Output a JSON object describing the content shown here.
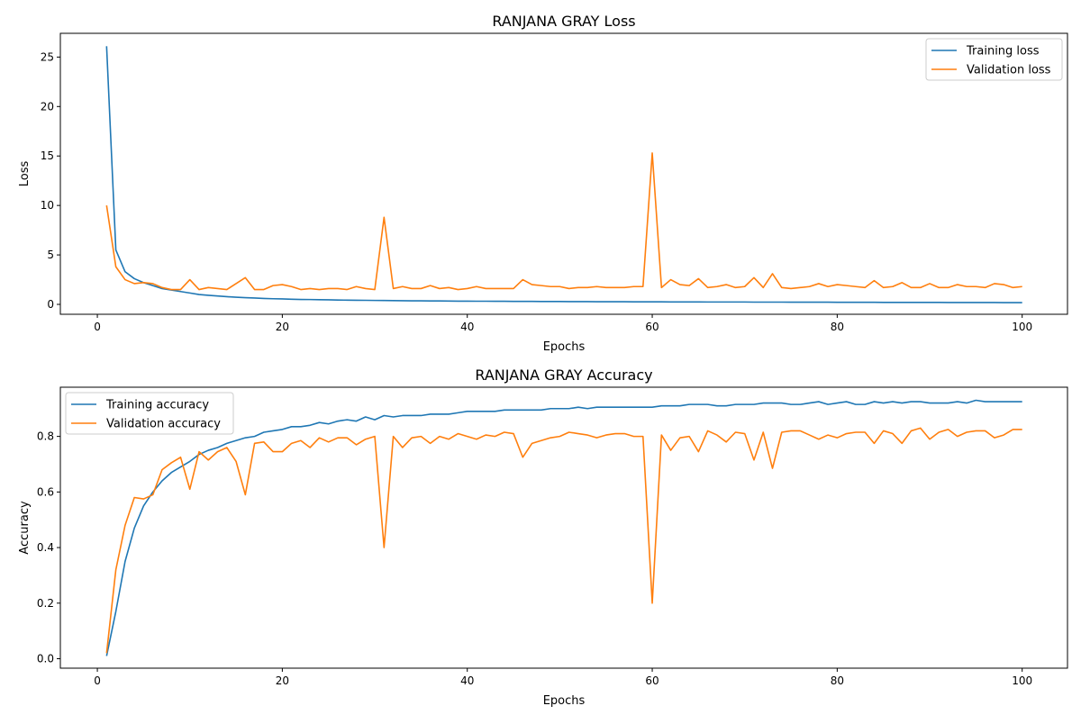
{
  "chart_data": [
    {
      "type": "line",
      "title": "RANJANA GRAY Loss",
      "xlabel": "Epochs",
      "ylabel": "Loss",
      "xlim": [
        -4,
        104.9
      ],
      "ylim": [
        -1.0,
        27.4
      ],
      "xticks": [
        0,
        20,
        40,
        60,
        80,
        100
      ],
      "yticks": [
        0,
        5,
        10,
        15,
        20,
        25
      ],
      "grid": false,
      "legend_position": "top-right",
      "x": [
        1,
        2,
        3,
        4,
        5,
        6,
        7,
        8,
        9,
        10,
        11,
        12,
        13,
        14,
        15,
        16,
        17,
        18,
        19,
        20,
        21,
        22,
        23,
        24,
        25,
        26,
        27,
        28,
        29,
        30,
        31,
        32,
        33,
        34,
        35,
        36,
        37,
        38,
        39,
        40,
        41,
        42,
        43,
        44,
        45,
        46,
        47,
        48,
        49,
        50,
        51,
        52,
        53,
        54,
        55,
        56,
        57,
        58,
        59,
        60,
        61,
        62,
        63,
        64,
        65,
        66,
        67,
        68,
        69,
        70,
        71,
        72,
        73,
        74,
        75,
        76,
        77,
        78,
        79,
        80,
        81,
        82,
        83,
        84,
        85,
        86,
        87,
        88,
        89,
        90,
        91,
        92,
        93,
        94,
        95,
        96,
        97,
        98,
        99,
        100
      ],
      "series": [
        {
          "name": "Training loss",
          "color": "#1f77b4",
          "values": [
            26.1,
            5.5,
            3.3,
            2.6,
            2.2,
            1.9,
            1.6,
            1.45,
            1.3,
            1.15,
            1.0,
            0.92,
            0.85,
            0.78,
            0.72,
            0.68,
            0.64,
            0.6,
            0.57,
            0.55,
            0.52,
            0.5,
            0.49,
            0.47,
            0.46,
            0.44,
            0.43,
            0.42,
            0.41,
            0.4,
            0.39,
            0.38,
            0.37,
            0.36,
            0.36,
            0.35,
            0.35,
            0.34,
            0.33,
            0.33,
            0.32,
            0.32,
            0.31,
            0.31,
            0.3,
            0.3,
            0.3,
            0.29,
            0.29,
            0.29,
            0.28,
            0.28,
            0.28,
            0.27,
            0.27,
            0.27,
            0.27,
            0.26,
            0.26,
            0.26,
            0.26,
            0.25,
            0.25,
            0.25,
            0.25,
            0.24,
            0.24,
            0.24,
            0.24,
            0.24,
            0.23,
            0.23,
            0.23,
            0.23,
            0.22,
            0.22,
            0.22,
            0.22,
            0.22,
            0.21,
            0.21,
            0.21,
            0.21,
            0.21,
            0.2,
            0.2,
            0.2,
            0.2,
            0.2,
            0.2,
            0.2,
            0.19,
            0.19,
            0.19,
            0.19,
            0.19,
            0.19,
            0.18,
            0.18,
            0.18
          ]
        },
        {
          "name": "Validation loss",
          "color": "#ff7f0e",
          "values": [
            10.0,
            3.8,
            2.5,
            2.1,
            2.2,
            2.1,
            1.7,
            1.5,
            1.5,
            2.5,
            1.5,
            1.7,
            1.6,
            1.5,
            2.1,
            2.7,
            1.5,
            1.5,
            1.9,
            2.0,
            1.8,
            1.5,
            1.6,
            1.5,
            1.6,
            1.6,
            1.5,
            1.8,
            1.6,
            1.5,
            8.8,
            1.6,
            1.8,
            1.6,
            1.6,
            1.9,
            1.6,
            1.7,
            1.5,
            1.6,
            1.8,
            1.6,
            1.6,
            1.6,
            1.6,
            2.5,
            2.0,
            1.9,
            1.8,
            1.8,
            1.6,
            1.7,
            1.7,
            1.8,
            1.7,
            1.7,
            1.7,
            1.8,
            1.8,
            15.3,
            1.7,
            2.5,
            2.0,
            1.9,
            2.6,
            1.7,
            1.8,
            2.0,
            1.7,
            1.8,
            2.7,
            1.7,
            3.1,
            1.7,
            1.6,
            1.7,
            1.8,
            2.1,
            1.8,
            2.0,
            1.9,
            1.8,
            1.7,
            2.4,
            1.7,
            1.8,
            2.2,
            1.7,
            1.7,
            2.1,
            1.7,
            1.7,
            2.0,
            1.8,
            1.8,
            1.7,
            2.1,
            2.0,
            1.7,
            1.8
          ]
        }
      ]
    },
    {
      "type": "line",
      "title": "RANJANA GRAY Accuracy",
      "xlabel": "Epochs",
      "ylabel": "Accuracy",
      "xlim": [
        -4,
        104.9
      ],
      "ylim": [
        -0.034,
        0.977
      ],
      "xticks": [
        0,
        20,
        40,
        60,
        80,
        100
      ],
      "yticks": [
        0.0,
        0.2,
        0.4,
        0.6,
        0.8
      ],
      "ytick_labels": [
        "0.0",
        "0.2",
        "0.4",
        "0.6",
        "0.8"
      ],
      "grid": false,
      "legend_position": "top-left",
      "x": [
        1,
        2,
        3,
        4,
        5,
        6,
        7,
        8,
        9,
        10,
        11,
        12,
        13,
        14,
        15,
        16,
        17,
        18,
        19,
        20,
        21,
        22,
        23,
        24,
        25,
        26,
        27,
        28,
        29,
        30,
        31,
        32,
        33,
        34,
        35,
        36,
        37,
        38,
        39,
        40,
        41,
        42,
        43,
        44,
        45,
        46,
        47,
        48,
        49,
        50,
        51,
        52,
        53,
        54,
        55,
        56,
        57,
        58,
        59,
        60,
        61,
        62,
        63,
        64,
        65,
        66,
        67,
        68,
        69,
        70,
        71,
        72,
        73,
        74,
        75,
        76,
        77,
        78,
        79,
        80,
        81,
        82,
        83,
        84,
        85,
        86,
        87,
        88,
        89,
        90,
        91,
        92,
        93,
        94,
        95,
        96,
        97,
        98,
        99,
        100
      ],
      "series": [
        {
          "name": "Training accuracy",
          "color": "#1f77b4",
          "values": [
            0.01,
            0.17,
            0.35,
            0.47,
            0.55,
            0.6,
            0.64,
            0.67,
            0.69,
            0.71,
            0.735,
            0.75,
            0.76,
            0.775,
            0.785,
            0.795,
            0.8,
            0.815,
            0.82,
            0.825,
            0.835,
            0.835,
            0.84,
            0.85,
            0.845,
            0.855,
            0.86,
            0.855,
            0.87,
            0.86,
            0.875,
            0.87,
            0.875,
            0.875,
            0.875,
            0.88,
            0.88,
            0.88,
            0.885,
            0.89,
            0.89,
            0.89,
            0.89,
            0.895,
            0.895,
            0.895,
            0.895,
            0.895,
            0.9,
            0.9,
            0.9,
            0.905,
            0.9,
            0.905,
            0.905,
            0.905,
            0.905,
            0.905,
            0.905,
            0.905,
            0.91,
            0.91,
            0.91,
            0.915,
            0.915,
            0.915,
            0.91,
            0.91,
            0.915,
            0.915,
            0.915,
            0.92,
            0.92,
            0.92,
            0.915,
            0.915,
            0.92,
            0.925,
            0.915,
            0.92,
            0.925,
            0.915,
            0.915,
            0.925,
            0.92,
            0.925,
            0.92,
            0.925,
            0.925,
            0.92,
            0.92,
            0.92,
            0.925,
            0.92,
            0.93,
            0.925,
            0.925,
            0.925,
            0.925,
            0.925
          ]
        },
        {
          "name": "Validation accuracy",
          "color": "#ff7f0e",
          "values": [
            0.02,
            0.32,
            0.48,
            0.58,
            0.575,
            0.59,
            0.68,
            0.705,
            0.725,
            0.61,
            0.745,
            0.715,
            0.745,
            0.76,
            0.71,
            0.59,
            0.775,
            0.78,
            0.745,
            0.745,
            0.775,
            0.785,
            0.76,
            0.795,
            0.78,
            0.795,
            0.795,
            0.77,
            0.79,
            0.8,
            0.4,
            0.8,
            0.76,
            0.795,
            0.8,
            0.775,
            0.8,
            0.79,
            0.81,
            0.8,
            0.79,
            0.805,
            0.8,
            0.815,
            0.81,
            0.725,
            0.775,
            0.785,
            0.795,
            0.8,
            0.815,
            0.81,
            0.805,
            0.795,
            0.805,
            0.81,
            0.81,
            0.8,
            0.8,
            0.2,
            0.805,
            0.75,
            0.795,
            0.8,
            0.745,
            0.82,
            0.805,
            0.78,
            0.815,
            0.81,
            0.715,
            0.815,
            0.685,
            0.815,
            0.82,
            0.82,
            0.805,
            0.79,
            0.805,
            0.795,
            0.81,
            0.815,
            0.815,
            0.775,
            0.82,
            0.81,
            0.775,
            0.82,
            0.83,
            0.79,
            0.815,
            0.825,
            0.8,
            0.815,
            0.82,
            0.82,
            0.795,
            0.805,
            0.825,
            0.825
          ]
        }
      ]
    }
  ]
}
